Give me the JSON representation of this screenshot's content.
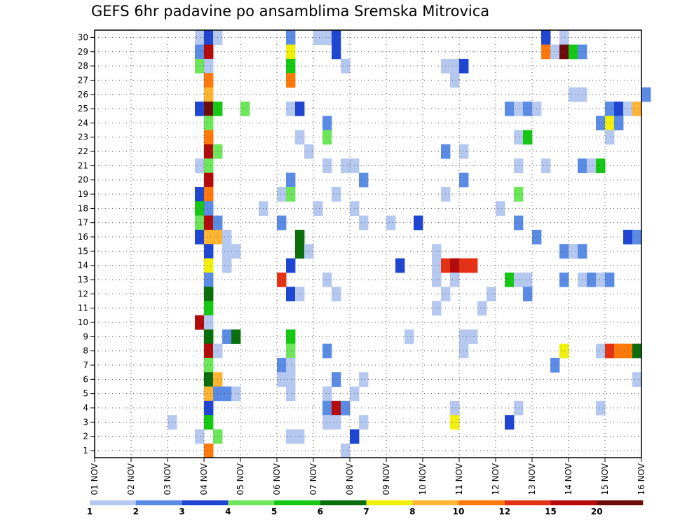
{
  "chart_data": {
    "type": "heatmap",
    "title": "GEFS 6hr padavine po ansamblima Sremska Mitrovica",
    "x_tick_labels": [
      "01 NOV",
      "02 NOV",
      "03 NOV",
      "04 NOV",
      "05 NOV",
      "06 NOV",
      "07 NOV",
      "08 NOV",
      "09 NOV",
      "10 NOV",
      "11 NOV",
      "12 NOV",
      "13 NOV",
      "14 NOV",
      "15 NOV",
      "16 NOV"
    ],
    "y_tick_labels": [
      "1",
      "2",
      "3",
      "4",
      "5",
      "6",
      "7",
      "8",
      "9",
      "10",
      "11",
      "12",
      "13",
      "14",
      "15",
      "16",
      "17",
      "18",
      "19",
      "20",
      "21",
      "22",
      "23",
      "24",
      "25",
      "26",
      "27",
      "28",
      "29",
      "30"
    ],
    "grid": true,
    "colorbar": {
      "labels": [
        "1",
        "2",
        "3",
        "4",
        "5",
        "6",
        "7",
        "8",
        "10",
        "12",
        "15",
        "20"
      ],
      "colors": [
        "#b4c8f0",
        "#5a8ce6",
        "#1e46d2",
        "#6ee65a",
        "#14c814",
        "#0a6e0a",
        "#f0f00a",
        "#ffb432",
        "#ff780a",
        "#e63214",
        "#b40a0a",
        "#6e0a0a"
      ]
    },
    "cells": [
      {
        "member": 30,
        "step": 11,
        "level": 1
      },
      {
        "member": 30,
        "step": 12,
        "level": 3
      },
      {
        "member": 30,
        "step": 13,
        "level": 1
      },
      {
        "member": 30,
        "step": 21,
        "level": 2
      },
      {
        "member": 30,
        "step": 24,
        "level": 1
      },
      {
        "member": 30,
        "step": 25,
        "level": 1
      },
      {
        "member": 30,
        "step": 26,
        "level": 3
      },
      {
        "member": 30,
        "step": 49,
        "level": 3
      },
      {
        "member": 30,
        "step": 51,
        "level": 1
      },
      {
        "member": 29,
        "step": 11,
        "level": 2
      },
      {
        "member": 29,
        "step": 12,
        "level": 11
      },
      {
        "member": 29,
        "step": 21,
        "level": 7
      },
      {
        "member": 29,
        "step": 26,
        "level": 3
      },
      {
        "member": 29,
        "step": 49,
        "level": 9
      },
      {
        "member": 29,
        "step": 50,
        "level": 1
      },
      {
        "member": 29,
        "step": 51,
        "level": 12
      },
      {
        "member": 29,
        "step": 52,
        "level": 5
      },
      {
        "member": 29,
        "step": 53,
        "level": 2
      },
      {
        "member": 28,
        "step": 11,
        "level": 4
      },
      {
        "member": 28,
        "step": 12,
        "level": 1
      },
      {
        "member": 28,
        "step": 21,
        "level": 5
      },
      {
        "member": 28,
        "step": 27,
        "level": 1
      },
      {
        "member": 28,
        "step": 38,
        "level": 1
      },
      {
        "member": 28,
        "step": 39,
        "level": 1
      },
      {
        "member": 28,
        "step": 40,
        "level": 3
      },
      {
        "member": 27,
        "step": 12,
        "level": 9
      },
      {
        "member": 27,
        "step": 21,
        "level": 9
      },
      {
        "member": 27,
        "step": 39,
        "level": 1
      },
      {
        "member": 26,
        "step": 12,
        "level": 8
      },
      {
        "member": 26,
        "step": 52,
        "level": 1
      },
      {
        "member": 26,
        "step": 53,
        "level": 1
      },
      {
        "member": 26,
        "step": 60,
        "level": 2
      },
      {
        "member": 25,
        "step": 11,
        "level": 3
      },
      {
        "member": 25,
        "step": 12,
        "level": 12
      },
      {
        "member": 25,
        "step": 13,
        "level": 5
      },
      {
        "member": 25,
        "step": 16,
        "level": 4
      },
      {
        "member": 25,
        "step": 21,
        "level": 1
      },
      {
        "member": 25,
        "step": 22,
        "level": 3
      },
      {
        "member": 25,
        "step": 45,
        "level": 2
      },
      {
        "member": 25,
        "step": 46,
        "level": 1
      },
      {
        "member": 25,
        "step": 47,
        "level": 2
      },
      {
        "member": 25,
        "step": 48,
        "level": 1
      },
      {
        "member": 25,
        "step": 56,
        "level": 2
      },
      {
        "member": 25,
        "step": 57,
        "level": 3
      },
      {
        "member": 25,
        "step": 58,
        "level": 1
      },
      {
        "member": 25,
        "step": 59,
        "level": 8
      },
      {
        "member": 24,
        "step": 12,
        "level": 4
      },
      {
        "member": 24,
        "step": 25,
        "level": 2
      },
      {
        "member": 24,
        "step": 55,
        "level": 2
      },
      {
        "member": 24,
        "step": 56,
        "level": 7
      },
      {
        "member": 24,
        "step": 57,
        "level": 2
      },
      {
        "member": 23,
        "step": 12,
        "level": 9
      },
      {
        "member": 23,
        "step": 22,
        "level": 1
      },
      {
        "member": 23,
        "step": 25,
        "level": 4
      },
      {
        "member": 23,
        "step": 46,
        "level": 1
      },
      {
        "member": 23,
        "step": 47,
        "level": 5
      },
      {
        "member": 23,
        "step": 56,
        "level": 1
      },
      {
        "member": 22,
        "step": 12,
        "level": 11
      },
      {
        "member": 22,
        "step": 13,
        "level": 4
      },
      {
        "member": 22,
        "step": 23,
        "level": 1
      },
      {
        "member": 22,
        "step": 38,
        "level": 2
      },
      {
        "member": 22,
        "step": 40,
        "level": 1
      },
      {
        "member": 21,
        "step": 11,
        "level": 1
      },
      {
        "member": 21,
        "step": 12,
        "level": 4
      },
      {
        "member": 21,
        "step": 25,
        "level": 1
      },
      {
        "member": 21,
        "step": 27,
        "level": 1
      },
      {
        "member": 21,
        "step": 28,
        "level": 1
      },
      {
        "member": 21,
        "step": 46,
        "level": 1
      },
      {
        "member": 21,
        "step": 49,
        "level": 1
      },
      {
        "member": 21,
        "step": 53,
        "level": 2
      },
      {
        "member": 21,
        "step": 54,
        "level": 1
      },
      {
        "member": 21,
        "step": 55,
        "level": 5
      },
      {
        "member": 20,
        "step": 12,
        "level": 11
      },
      {
        "member": 20,
        "step": 21,
        "level": 2
      },
      {
        "member": 20,
        "step": 29,
        "level": 2
      },
      {
        "member": 20,
        "step": 40,
        "level": 2
      },
      {
        "member": 19,
        "step": 11,
        "level": 3
      },
      {
        "member": 19,
        "step": 12,
        "level": 9
      },
      {
        "member": 19,
        "step": 20,
        "level": 1
      },
      {
        "member": 19,
        "step": 21,
        "level": 4
      },
      {
        "member": 19,
        "step": 26,
        "level": 1
      },
      {
        "member": 19,
        "step": 38,
        "level": 1
      },
      {
        "member": 19,
        "step": 46,
        "level": 4
      },
      {
        "member": 18,
        "step": 11,
        "level": 5
      },
      {
        "member": 18,
        "step": 12,
        "level": 2
      },
      {
        "member": 18,
        "step": 18,
        "level": 1
      },
      {
        "member": 18,
        "step": 24,
        "level": 1
      },
      {
        "member": 18,
        "step": 28,
        "level": 1
      },
      {
        "member": 18,
        "step": 44,
        "level": 1
      },
      {
        "member": 17,
        "step": 11,
        "level": 4
      },
      {
        "member": 17,
        "step": 12,
        "level": 11
      },
      {
        "member": 17,
        "step": 13,
        "level": 2
      },
      {
        "member": 17,
        "step": 20,
        "level": 2
      },
      {
        "member": 17,
        "step": 29,
        "level": 1
      },
      {
        "member": 17,
        "step": 32,
        "level": 1
      },
      {
        "member": 17,
        "step": 35,
        "level": 3
      },
      {
        "member": 17,
        "step": 46,
        "level": 2
      },
      {
        "member": 16,
        "step": 11,
        "level": 3
      },
      {
        "member": 16,
        "step": 12,
        "level": 8
      },
      {
        "member": 16,
        "step": 13,
        "level": 8
      },
      {
        "member": 16,
        "step": 14,
        "level": 1
      },
      {
        "member": 16,
        "step": 22,
        "level": 6
      },
      {
        "member": 16,
        "step": 48,
        "level": 2
      },
      {
        "member": 16,
        "step": 58,
        "level": 3
      },
      {
        "member": 16,
        "step": 59,
        "level": 2
      },
      {
        "member": 15,
        "step": 12,
        "level": 3
      },
      {
        "member": 15,
        "step": 14,
        "level": 1
      },
      {
        "member": 15,
        "step": 15,
        "level": 1
      },
      {
        "member": 15,
        "step": 22,
        "level": 6
      },
      {
        "member": 15,
        "step": 23,
        "level": 1
      },
      {
        "member": 15,
        "step": 37,
        "level": 1
      },
      {
        "member": 15,
        "step": 51,
        "level": 2
      },
      {
        "member": 15,
        "step": 52,
        "level": 1
      },
      {
        "member": 15,
        "step": 53,
        "level": 2
      },
      {
        "member": 14,
        "step": 12,
        "level": 7
      },
      {
        "member": 14,
        "step": 14,
        "level": 1
      },
      {
        "member": 14,
        "step": 21,
        "level": 3
      },
      {
        "member": 14,
        "step": 33,
        "level": 3
      },
      {
        "member": 14,
        "step": 37,
        "level": 1
      },
      {
        "member": 14,
        "step": 38,
        "level": 10
      },
      {
        "member": 14,
        "step": 39,
        "level": 11
      },
      {
        "member": 14,
        "step": 40,
        "level": 10
      },
      {
        "member": 14,
        "step": 41,
        "level": 10
      },
      {
        "member": 13,
        "step": 12,
        "level": 2
      },
      {
        "member": 13,
        "step": 20,
        "level": 10
      },
      {
        "member": 13,
        "step": 25,
        "level": 1
      },
      {
        "member": 13,
        "step": 37,
        "level": 1
      },
      {
        "member": 13,
        "step": 39,
        "level": 1
      },
      {
        "member": 13,
        "step": 45,
        "level": 5
      },
      {
        "member": 13,
        "step": 46,
        "level": 1
      },
      {
        "member": 13,
        "step": 47,
        "level": 1
      },
      {
        "member": 13,
        "step": 51,
        "level": 2
      },
      {
        "member": 13,
        "step": 53,
        "level": 1
      },
      {
        "member": 13,
        "step": 54,
        "level": 2
      },
      {
        "member": 13,
        "step": 55,
        "level": 1
      },
      {
        "member": 13,
        "step": 56,
        "level": 2
      },
      {
        "member": 12,
        "step": 12,
        "level": 6
      },
      {
        "member": 12,
        "step": 21,
        "level": 3
      },
      {
        "member": 12,
        "step": 22,
        "level": 1
      },
      {
        "member": 12,
        "step": 26,
        "level": 1
      },
      {
        "member": 12,
        "step": 38,
        "level": 1
      },
      {
        "member": 12,
        "step": 43,
        "level": 1
      },
      {
        "member": 12,
        "step": 47,
        "level": 2
      },
      {
        "member": 11,
        "step": 12,
        "level": 5
      },
      {
        "member": 11,
        "step": 37,
        "level": 1
      },
      {
        "member": 11,
        "step": 42,
        "level": 1
      },
      {
        "member": 10,
        "step": 11,
        "level": 11
      },
      {
        "member": 10,
        "step": 12,
        "level": 1
      },
      {
        "member": 9,
        "step": 12,
        "level": 6
      },
      {
        "member": 9,
        "step": 14,
        "level": 2
      },
      {
        "member": 9,
        "step": 15,
        "level": 6
      },
      {
        "member": 9,
        "step": 21,
        "level": 5
      },
      {
        "member": 9,
        "step": 34,
        "level": 1
      },
      {
        "member": 9,
        "step": 40,
        "level": 1
      },
      {
        "member": 9,
        "step": 41,
        "level": 1
      },
      {
        "member": 8,
        "step": 12,
        "level": 11
      },
      {
        "member": 8,
        "step": 13,
        "level": 1
      },
      {
        "member": 8,
        "step": 21,
        "level": 4
      },
      {
        "member": 8,
        "step": 25,
        "level": 2
      },
      {
        "member": 8,
        "step": 40,
        "level": 1
      },
      {
        "member": 8,
        "step": 51,
        "level": 7
      },
      {
        "member": 8,
        "step": 55,
        "level": 1
      },
      {
        "member": 8,
        "step": 56,
        "level": 10
      },
      {
        "member": 8,
        "step": 57,
        "level": 9
      },
      {
        "member": 8,
        "step": 58,
        "level": 9
      },
      {
        "member": 8,
        "step": 59,
        "level": 6
      },
      {
        "member": 7,
        "step": 12,
        "level": 4
      },
      {
        "member": 7,
        "step": 20,
        "level": 2
      },
      {
        "member": 7,
        "step": 21,
        "level": 1
      },
      {
        "member": 7,
        "step": 50,
        "level": 2
      },
      {
        "member": 6,
        "step": 12,
        "level": 6
      },
      {
        "member": 6,
        "step": 13,
        "level": 8
      },
      {
        "member": 6,
        "step": 20,
        "level": 1
      },
      {
        "member": 6,
        "step": 21,
        "level": 1
      },
      {
        "member": 6,
        "step": 26,
        "level": 2
      },
      {
        "member": 6,
        "step": 29,
        "level": 1
      },
      {
        "member": 6,
        "step": 59,
        "level": 1
      },
      {
        "member": 5,
        "step": 12,
        "level": 8
      },
      {
        "member": 5,
        "step": 13,
        "level": 2
      },
      {
        "member": 5,
        "step": 14,
        "level": 2
      },
      {
        "member": 5,
        "step": 15,
        "level": 1
      },
      {
        "member": 5,
        "step": 21,
        "level": 1
      },
      {
        "member": 5,
        "step": 25,
        "level": 1
      },
      {
        "member": 5,
        "step": 28,
        "level": 1
      },
      {
        "member": 4,
        "step": 12,
        "level": 3
      },
      {
        "member": 4,
        "step": 25,
        "level": 2
      },
      {
        "member": 4,
        "step": 26,
        "level": 11
      },
      {
        "member": 4,
        "step": 27,
        "level": 2
      },
      {
        "member": 4,
        "step": 39,
        "level": 1
      },
      {
        "member": 4,
        "step": 46,
        "level": 1
      },
      {
        "member": 4,
        "step": 55,
        "level": 1
      },
      {
        "member": 3,
        "step": 8,
        "level": 1
      },
      {
        "member": 3,
        "step": 12,
        "level": 5
      },
      {
        "member": 3,
        "step": 25,
        "level": 1
      },
      {
        "member": 3,
        "step": 26,
        "level": 1
      },
      {
        "member": 3,
        "step": 29,
        "level": 1
      },
      {
        "member": 3,
        "step": 39,
        "level": 7
      },
      {
        "member": 3,
        "step": 45,
        "level": 3
      },
      {
        "member": 2,
        "step": 11,
        "level": 1
      },
      {
        "member": 2,
        "step": 13,
        "level": 4
      },
      {
        "member": 2,
        "step": 21,
        "level": 1
      },
      {
        "member": 2,
        "step": 22,
        "level": 1
      },
      {
        "member": 2,
        "step": 28,
        "level": 3
      },
      {
        "member": 1,
        "step": 12,
        "level": 9
      },
      {
        "member": 1,
        "step": 27,
        "level": 1
      }
    ]
  }
}
